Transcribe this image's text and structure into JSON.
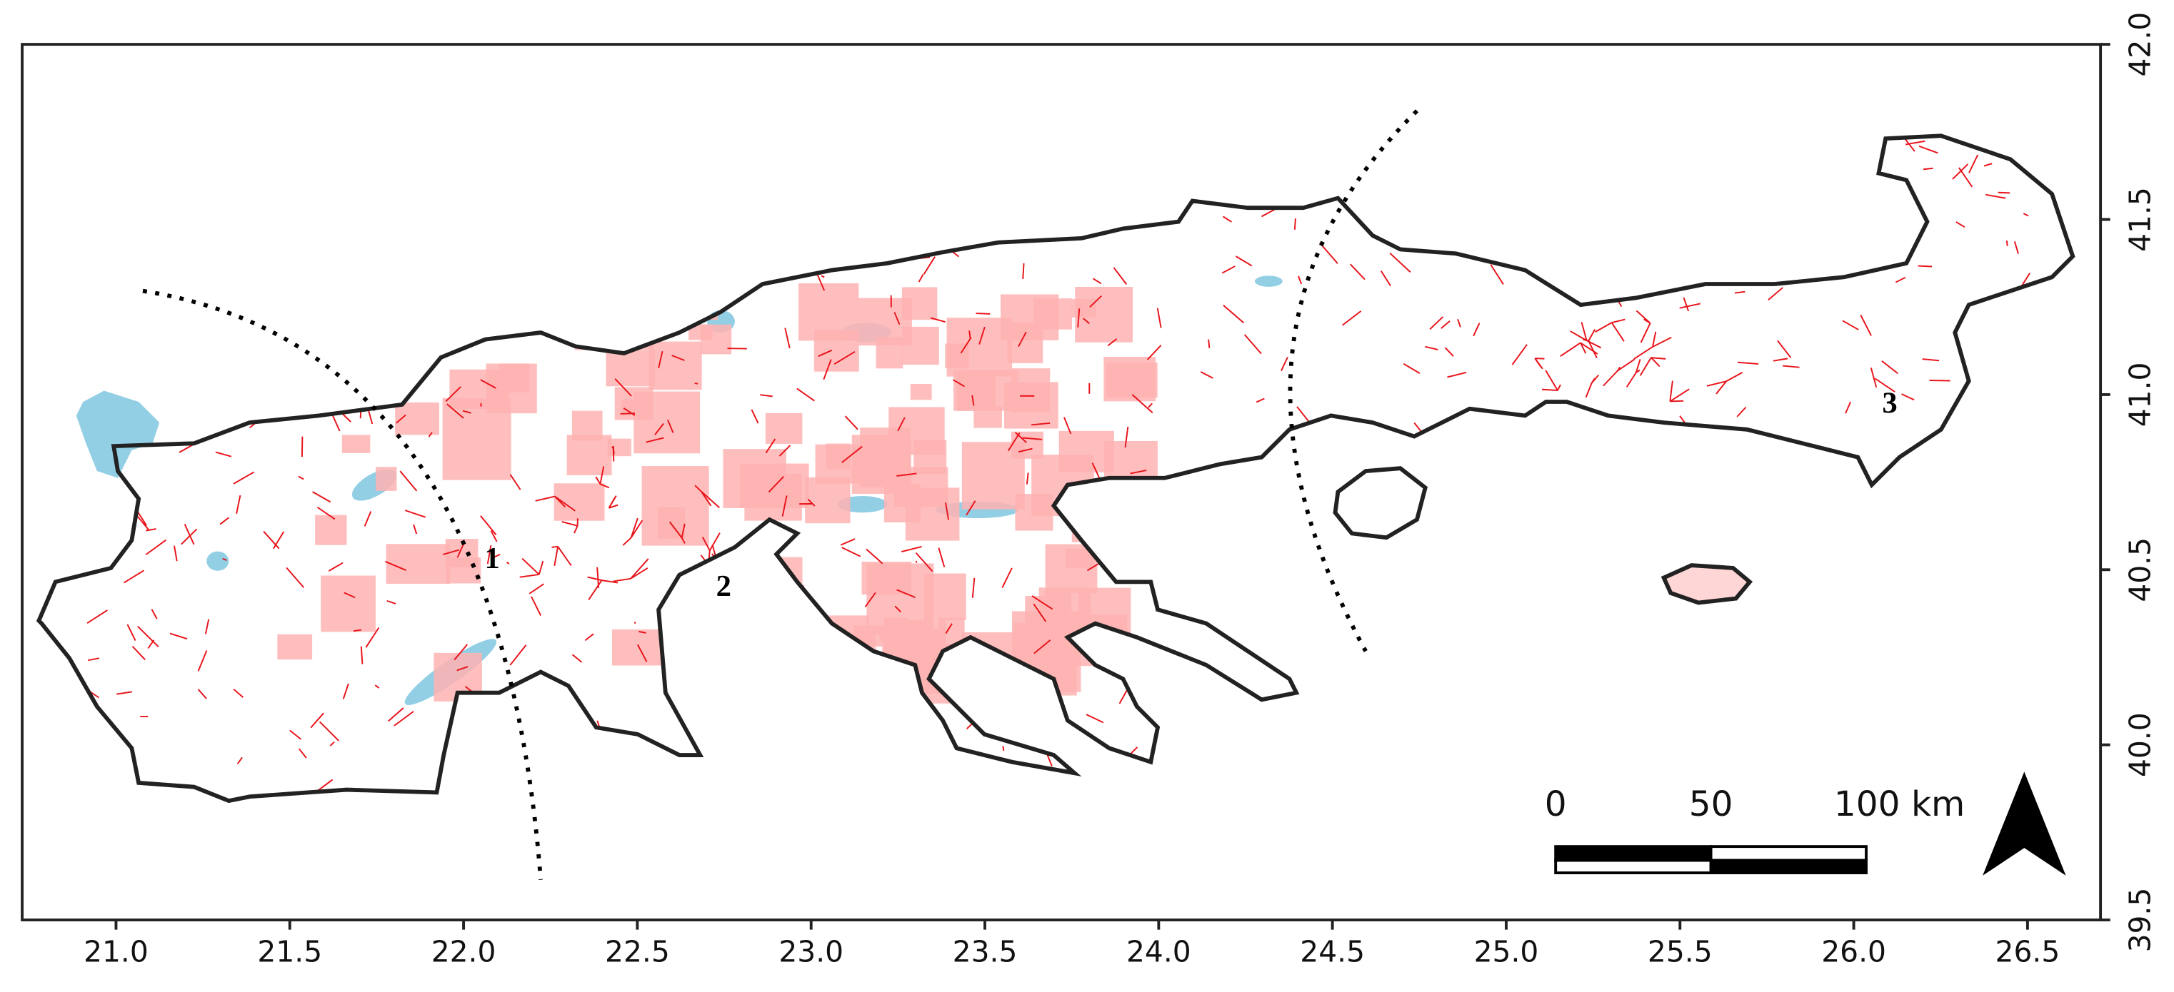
{
  "map": {
    "xlim": [
      20.73,
      26.71
    ],
    "ylim": [
      39.5,
      42.0
    ],
    "xticks": [
      {
        "value": 21,
        "label": "21.0"
      },
      {
        "value": 21.5,
        "label": "21.5"
      },
      {
        "value": 22,
        "label": "22.0"
      },
      {
        "value": 22.5,
        "label": "22.5"
      },
      {
        "value": 23,
        "label": "23.0"
      },
      {
        "value": 23.5,
        "label": "23.5"
      },
      {
        "value": 24,
        "label": "24.0"
      },
      {
        "value": 24.5,
        "label": "24.5"
      },
      {
        "value": 25,
        "label": "25.0"
      },
      {
        "value": 25.5,
        "label": "25.5"
      },
      {
        "value": 26,
        "label": "26.0"
      },
      {
        "value": 26.5,
        "label": "26.5"
      }
    ],
    "yticks": [
      {
        "value": 39.5,
        "label": "39.5"
      },
      {
        "value": 40,
        "label": "40.0"
      },
      {
        "value": 40.5,
        "label": "40.5"
      },
      {
        "value": 41,
        "label": "41.0"
      },
      {
        "value": 41.5,
        "label": "41.5"
      },
      {
        "value": 42,
        "label": "42.0"
      }
    ],
    "region_labels": [
      "1",
      "2",
      "3"
    ],
    "scale_bar": {
      "labels": [
        "0",
        "50",
        "100 km"
      ]
    }
  }
}
